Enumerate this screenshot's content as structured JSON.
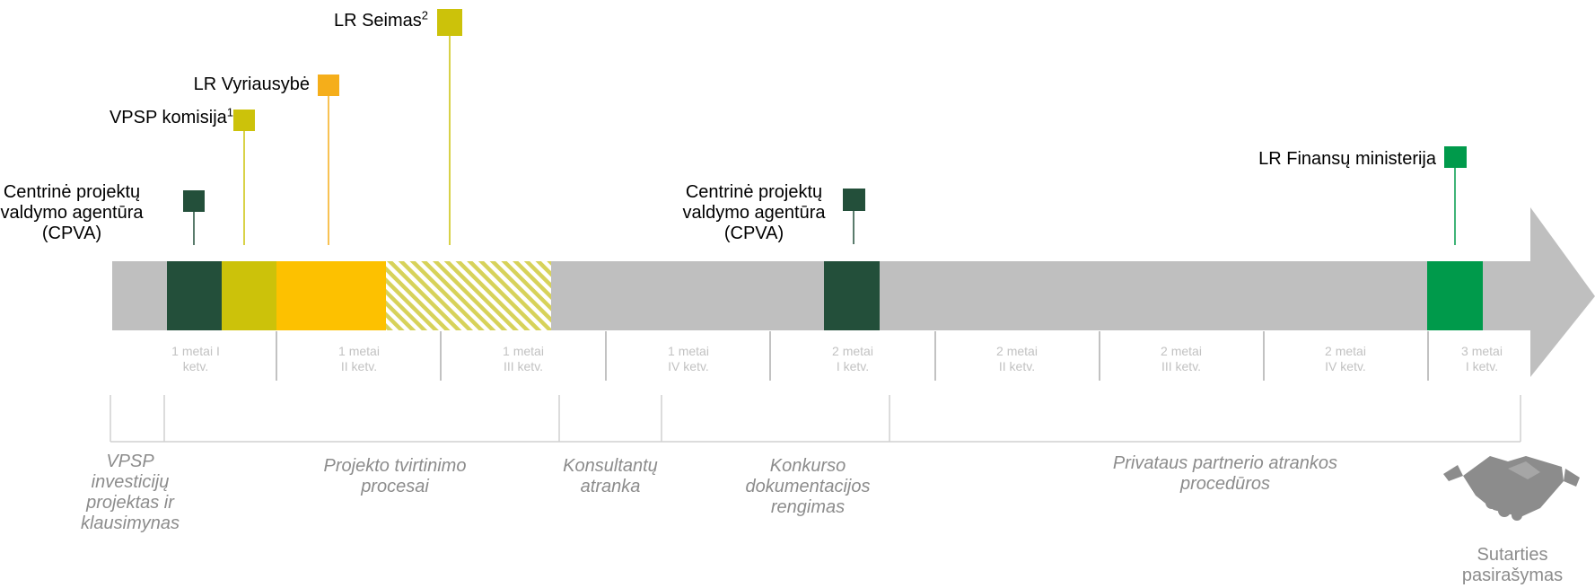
{
  "actors": [
    {
      "lines": [
        "Centrinė projektų",
        "valdymo agentūra",
        "(CPVA)"
      ],
      "color": "#234f3a"
    },
    {
      "text": "VPSP komisija",
      "sup": "1",
      "color": "#ccc20a"
    },
    {
      "text": "LR Vyriausybė",
      "sup": "",
      "color": "#f5ae1a"
    },
    {
      "text": "LR Seimas",
      "sup": "2",
      "color": "#ccc20a"
    },
    {
      "lines": [
        "Centrinė projektų",
        "valdymo agentūra",
        "(CPVA)"
      ],
      "color": "#234f3a"
    },
    {
      "text": "LR Finansų ministerija",
      "sup": "",
      "color": "#009a4b"
    }
  ],
  "quarters": [
    {
      "line1": "1 metai I",
      "line2": "ketv."
    },
    {
      "line1": "1 metai",
      "line2": "II ketv."
    },
    {
      "line1": "1 metai",
      "line2": "III ketv."
    },
    {
      "line1": "1 metai",
      "line2": "IV ketv."
    },
    {
      "line1": "2 metai",
      "line2": "I ketv."
    },
    {
      "line1": "2 metai",
      "line2": "II ketv."
    },
    {
      "line1": "2 metai",
      "line2": "III ketv."
    },
    {
      "line1": "2 metai",
      "line2": "IV ketv."
    },
    {
      "line1": "3 metai",
      "line2": "I ketv."
    }
  ],
  "phases": [
    {
      "lines": [
        "VPSP",
        "investicijų",
        "projektas ir",
        "klausimynas"
      ]
    },
    {
      "lines": [
        "Projekto tvirtinimo",
        "procesai"
      ]
    },
    {
      "lines": [
        "Konsultantų",
        "atranka"
      ]
    },
    {
      "lines": [
        "Konkurso",
        "dokumentacijos",
        "rengimas"
      ]
    },
    {
      "lines": [
        "Privataus partnerio atrankos",
        "procedūros"
      ]
    }
  ],
  "signing": {
    "lines": [
      "Sutarties",
      "pasirašymas"
    ],
    "icon": "handshake-icon"
  },
  "colors": {
    "bar": "#bfbfbf",
    "dark_green": "#234f3a",
    "olive": "#ccc20a",
    "amber": "#fdc100",
    "orange": "#f5ae1a",
    "green": "#009a4b",
    "hatch": "#d7d25a",
    "quarter_text": "#c2c2c2",
    "phase_text": "#8c8c8c"
  }
}
